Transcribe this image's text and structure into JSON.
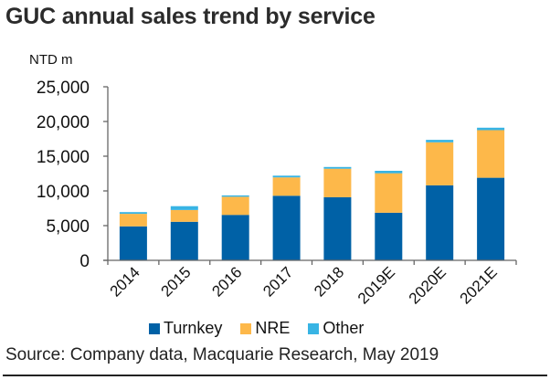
{
  "title": "GUC annual sales trend by service",
  "source": "Source: Company data, Macquarie Research, May 2019",
  "chart_data": {
    "type": "bar",
    "stacked": true,
    "title": "GUC annual sales trend by service",
    "ylabel": "NTD m",
    "xlabel": "",
    "categories": [
      "2014",
      "2015",
      "2016",
      "2017",
      "2018",
      "2019E",
      "2020E",
      "2021E"
    ],
    "series": [
      {
        "name": "Turnkey",
        "color": "#0061A6",
        "values": [
          4900,
          5550,
          6550,
          9300,
          9100,
          6850,
          10800,
          11900
        ]
      },
      {
        "name": "NRE",
        "color": "#FDB84A",
        "values": [
          1800,
          1700,
          2600,
          2650,
          4100,
          5700,
          6200,
          6850
        ]
      },
      {
        "name": "Other",
        "color": "#38B4E4",
        "values": [
          250,
          550,
          200,
          250,
          250,
          350,
          350,
          350
        ]
      }
    ],
    "ylim": [
      0,
      25000
    ],
    "yticks": [
      0,
      5000,
      10000,
      15000,
      20000,
      25000
    ],
    "ytick_labels": [
      "0",
      "5,000",
      "10,000",
      "15,000",
      "20,000",
      "25,000"
    ],
    "grid": false,
    "legend_position": "bottom"
  }
}
